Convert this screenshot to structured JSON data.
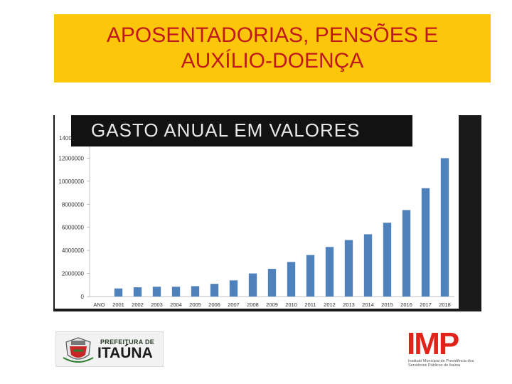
{
  "slide": {
    "title": "APOSENTADORIAS, PENSÕES E\nAUXÍLIO-DOENÇA"
  },
  "chart_data": {
    "type": "bar",
    "subtitle": "GASTO ANUAL EM VALORES",
    "stray_label": "1400",
    "x_axis_label": "ANO",
    "categories": [
      "2001",
      "2002",
      "2003",
      "2004",
      "2005",
      "2006",
      "2007",
      "2008",
      "2009",
      "2010",
      "2011",
      "2012",
      "2013",
      "2014",
      "2015",
      "2016",
      "2017",
      "2018"
    ],
    "series": [
      {
        "values": [
          700000,
          800000,
          850000,
          850000,
          900000,
          1100000,
          1400000,
          2000000,
          2400000,
          3000000,
          3600000,
          4300000,
          4900000,
          5400000,
          6400000,
          7500000,
          9400000,
          12000000
        ],
        "color": "#4f81bd"
      }
    ],
    "y_ticks": [
      "0",
      "2000000",
      "4000000",
      "6000000",
      "8000000",
      "10000000",
      "12000000"
    ],
    "ylim": [
      0,
      14000000
    ],
    "grid": false,
    "background": "#ffffff",
    "frame_color": "#1a1a1a"
  },
  "logos": {
    "prefeitura": {
      "line1": "PREFEITURA DE",
      "line2": "ITAÚNA"
    },
    "imp": {
      "word": "IMP",
      "caption": "Instituto Municipal de Previdência dos Servidores Públicos de Itaúna"
    }
  }
}
